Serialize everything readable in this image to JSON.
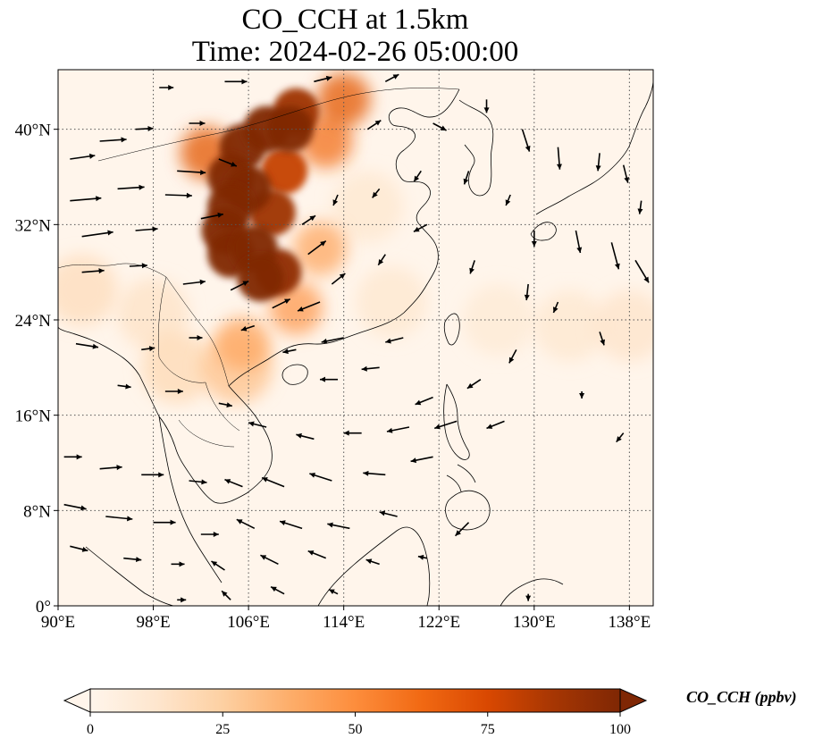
{
  "title": {
    "line1": "CO_CCH at 1.5km",
    "line2": "Time: 2024-02-26 05:00:00"
  },
  "map": {
    "extent": {
      "lon": [
        90,
        140
      ],
      "lat": [
        0,
        45
      ]
    },
    "lon_ticks": [
      {
        "value": 90,
        "label": "90°E"
      },
      {
        "value": 98,
        "label": "98°E"
      },
      {
        "value": 106,
        "label": "106°E"
      },
      {
        "value": 114,
        "label": "114°E"
      },
      {
        "value": 122,
        "label": "122°E"
      },
      {
        "value": 130,
        "label": "130°E"
      },
      {
        "value": 138,
        "label": "138°E"
      }
    ],
    "lat_ticks": [
      {
        "value": 0,
        "label": "0°"
      },
      {
        "value": 8,
        "label": "8°N"
      },
      {
        "value": 16,
        "label": "16°N"
      },
      {
        "value": 24,
        "label": "24°N"
      },
      {
        "value": 32,
        "label": "32°N"
      },
      {
        "value": 40,
        "label": "40°N"
      }
    ],
    "gridlines": true,
    "background_color": "#fff5eb",
    "coastline_color": "#000000",
    "concentration_field": [
      {
        "lon": 105.5,
        "lat": 38.5,
        "value": 100
      },
      {
        "lon": 107.5,
        "lat": 40.0,
        "value": 100
      },
      {
        "lon": 109.5,
        "lat": 40.0,
        "value": 100
      },
      {
        "lon": 110.0,
        "lat": 41.5,
        "value": 90
      },
      {
        "lon": 104.5,
        "lat": 36.0,
        "value": 100
      },
      {
        "lon": 106.0,
        "lat": 35.0,
        "value": 100
      },
      {
        "lon": 104.5,
        "lat": 33.5,
        "value": 100
      },
      {
        "lon": 104.0,
        "lat": 31.5,
        "value": 100
      },
      {
        "lon": 104.5,
        "lat": 29.5,
        "value": 100
      },
      {
        "lon": 106.5,
        "lat": 30.0,
        "value": 100
      },
      {
        "lon": 107.0,
        "lat": 27.5,
        "value": 100
      },
      {
        "lon": 108.5,
        "lat": 28.0,
        "value": 95
      },
      {
        "lon": 108.0,
        "lat": 33.0,
        "value": 90
      },
      {
        "lon": 109.0,
        "lat": 36.5,
        "value": 80
      },
      {
        "lon": 102.5,
        "lat": 38.0,
        "value": 70
      },
      {
        "lon": 112.5,
        "lat": 39.0,
        "value": 60
      },
      {
        "lon": 114.0,
        "lat": 42.5,
        "value": 70
      },
      {
        "lon": 112.0,
        "lat": 30.0,
        "value": 40
      },
      {
        "lon": 110.0,
        "lat": 25.0,
        "value": 45
      },
      {
        "lon": 105.5,
        "lat": 22.0,
        "value": 40
      },
      {
        "lon": 105.0,
        "lat": 20.0,
        "value": 30
      },
      {
        "lon": 100.0,
        "lat": 20.0,
        "value": 20
      },
      {
        "lon": 92.0,
        "lat": 26.5,
        "value": 18
      },
      {
        "lon": 98.0,
        "lat": 24.5,
        "value": 15
      },
      {
        "lon": 127.0,
        "lat": 24.0,
        "value": 10
      },
      {
        "lon": 133.0,
        "lat": 23.5,
        "value": 12
      },
      {
        "lon": 138.0,
        "lat": 23.5,
        "value": 14
      },
      {
        "lon": 118.0,
        "lat": 25.5,
        "value": 12
      },
      {
        "lon": 116.0,
        "lat": 33.5,
        "value": 12
      }
    ],
    "wind_vectors": [
      {
        "lon": 91.0,
        "lat": 37.5,
        "u": 2.8,
        "v": 0.4
      },
      {
        "lon": 93.5,
        "lat": 39.0,
        "u": 3.0,
        "v": 0.2
      },
      {
        "lon": 96.5,
        "lat": 40.0,
        "u": 2.0,
        "v": 0.1
      },
      {
        "lon": 91.0,
        "lat": 34.0,
        "u": 3.5,
        "v": 0.3
      },
      {
        "lon": 95.0,
        "lat": 35.0,
        "u": 3.0,
        "v": 0.2
      },
      {
        "lon": 99.0,
        "lat": 34.5,
        "u": 3.0,
        "v": -0.1
      },
      {
        "lon": 92.0,
        "lat": 31.0,
        "u": 3.5,
        "v": 0.5
      },
      {
        "lon": 96.5,
        "lat": 31.5,
        "u": 2.5,
        "v": 0.2
      },
      {
        "lon": 92.0,
        "lat": 28.0,
        "u": 2.5,
        "v": 0.2
      },
      {
        "lon": 96.0,
        "lat": 28.5,
        "u": 2.0,
        "v": 0.1
      },
      {
        "lon": 100.5,
        "lat": 27.0,
        "u": 2.5,
        "v": 0.3
      },
      {
        "lon": 102.0,
        "lat": 32.5,
        "u": 2.5,
        "v": 0.5
      },
      {
        "lon": 103.5,
        "lat": 37.5,
        "u": 2.0,
        "v": -0.8
      },
      {
        "lon": 100.0,
        "lat": 36.5,
        "u": 3.2,
        "v": -0.2
      },
      {
        "lon": 101.0,
        "lat": 40.5,
        "u": 1.8,
        "v": 0.0
      },
      {
        "lon": 104.0,
        "lat": 44.0,
        "u": 2.5,
        "v": 0.0
      },
      {
        "lon": 98.5,
        "lat": 43.5,
        "u": 1.6,
        "v": 0.0
      },
      {
        "lon": 111.5,
        "lat": 44.0,
        "u": 2.0,
        "v": 0.5
      },
      {
        "lon": 117.5,
        "lat": 44.0,
        "u": 1.5,
        "v": 0.8
      },
      {
        "lon": 116.0,
        "lat": 40.0,
        "u": 1.5,
        "v": 1.0
      },
      {
        "lon": 121.5,
        "lat": 40.5,
        "u": 1.5,
        "v": -0.8
      },
      {
        "lon": 126.0,
        "lat": 42.5,
        "u": 0.0,
        "v": -1.5
      },
      {
        "lon": 129.0,
        "lat": 40.0,
        "u": 0.8,
        "v": -2.5
      },
      {
        "lon": 132.0,
        "lat": 38.5,
        "u": 0.2,
        "v": -2.5
      },
      {
        "lon": 135.5,
        "lat": 38.0,
        "u": -0.2,
        "v": -2.0
      },
      {
        "lon": 137.5,
        "lat": 37.0,
        "u": 0.5,
        "v": -2.0
      },
      {
        "lon": 139.0,
        "lat": 34.0,
        "u": -0.2,
        "v": -1.5
      },
      {
        "lon": 133.5,
        "lat": 31.5,
        "u": 0.5,
        "v": -2.5
      },
      {
        "lon": 136.5,
        "lat": 30.5,
        "u": 0.8,
        "v": -3.0
      },
      {
        "lon": 138.5,
        "lat": 29.0,
        "u": 1.5,
        "v": -2.5
      },
      {
        "lon": 130.0,
        "lat": 31.5,
        "u": 0.0,
        "v": -1.8
      },
      {
        "lon": 128.0,
        "lat": 34.5,
        "u": -0.5,
        "v": -1.2
      },
      {
        "lon": 124.5,
        "lat": 36.5,
        "u": -0.5,
        "v": -1.5
      },
      {
        "lon": 120.5,
        "lat": 36.5,
        "u": -0.8,
        "v": -1.2
      },
      {
        "lon": 117.0,
        "lat": 35.0,
        "u": -0.8,
        "v": -1.0
      },
      {
        "lon": 113.5,
        "lat": 34.5,
        "u": -0.5,
        "v": -1.2
      },
      {
        "lon": 121.0,
        "lat": 32.0,
        "u": -1.5,
        "v": -0.8
      },
      {
        "lon": 117.5,
        "lat": 29.5,
        "u": -0.8,
        "v": -1.2
      },
      {
        "lon": 125.0,
        "lat": 29.0,
        "u": -0.5,
        "v": -1.5
      },
      {
        "lon": 129.5,
        "lat": 27.0,
        "u": -0.2,
        "v": -1.8
      },
      {
        "lon": 132.0,
        "lat": 25.5,
        "u": -0.5,
        "v": -1.2
      },
      {
        "lon": 135.5,
        "lat": 23.0,
        "u": 0.5,
        "v": -1.5
      },
      {
        "lon": 128.5,
        "lat": 21.5,
        "u": -0.8,
        "v": -1.5
      },
      {
        "lon": 125.5,
        "lat": 19.0,
        "u": -1.5,
        "v": -1.0
      },
      {
        "lon": 121.5,
        "lat": 17.5,
        "u": -2.0,
        "v": -0.8
      },
      {
        "lon": 117.0,
        "lat": 20.0,
        "u": -2.0,
        "v": -0.2
      },
      {
        "lon": 113.5,
        "lat": 19.0,
        "u": -2.0,
        "v": 0.0
      },
      {
        "lon": 119.0,
        "lat": 22.5,
        "u": -2.0,
        "v": -0.5
      },
      {
        "lon": 114.0,
        "lat": 22.5,
        "u": -2.5,
        "v": -0.5
      },
      {
        "lon": 110.0,
        "lat": 21.5,
        "u": -1.5,
        "v": -0.3
      },
      {
        "lon": 112.0,
        "lat": 25.5,
        "u": -2.5,
        "v": -1.0
      },
      {
        "lon": 108.0,
        "lat": 25.0,
        "u": 2.0,
        "v": 1.0
      },
      {
        "lon": 104.5,
        "lat": 26.5,
        "u": 2.0,
        "v": 1.0
      },
      {
        "lon": 113.0,
        "lat": 27.0,
        "u": 1.5,
        "v": 1.2
      },
      {
        "lon": 111.0,
        "lat": 29.5,
        "u": 2.0,
        "v": 1.5
      },
      {
        "lon": 110.5,
        "lat": 32.0,
        "u": 1.5,
        "v": 1.0
      },
      {
        "lon": 106.5,
        "lat": 23.5,
        "u": -1.5,
        "v": -0.5
      },
      {
        "lon": 101.0,
        "lat": 22.5,
        "u": 1.5,
        "v": 0.0
      },
      {
        "lon": 97.0,
        "lat": 21.5,
        "u": 1.5,
        "v": 0.2
      },
      {
        "lon": 91.5,
        "lat": 22.0,
        "u": 2.5,
        "v": -0.4
      },
      {
        "lon": 95.0,
        "lat": 18.5,
        "u": 1.5,
        "v": -0.2
      },
      {
        "lon": 99.0,
        "lat": 18.0,
        "u": 2.0,
        "v": 0.0
      },
      {
        "lon": 103.5,
        "lat": 17.0,
        "u": 1.5,
        "v": -0.3
      },
      {
        "lon": 107.5,
        "lat": 15.0,
        "u": -2.0,
        "v": 0.5
      },
      {
        "lon": 111.5,
        "lat": 14.0,
        "u": -2.0,
        "v": 0.5
      },
      {
        "lon": 115.5,
        "lat": 14.5,
        "u": -2.0,
        "v": 0.0
      },
      {
        "lon": 119.5,
        "lat": 15.0,
        "u": -2.5,
        "v": -0.5
      },
      {
        "lon": 123.5,
        "lat": 15.5,
        "u": -2.5,
        "v": -0.8
      },
      {
        "lon": 127.5,
        "lat": 15.5,
        "u": -2.0,
        "v": -0.8
      },
      {
        "lon": 90.5,
        "lat": 12.5,
        "u": 2.0,
        "v": 0.0
      },
      {
        "lon": 93.5,
        "lat": 11.5,
        "u": 2.5,
        "v": 0.2
      },
      {
        "lon": 97.0,
        "lat": 11.0,
        "u": 2.5,
        "v": 0.0
      },
      {
        "lon": 101.0,
        "lat": 10.5,
        "u": 2.0,
        "v": -0.2
      },
      {
        "lon": 105.5,
        "lat": 10.0,
        "u": -2.0,
        "v": 0.8
      },
      {
        "lon": 109.0,
        "lat": 10.0,
        "u": -2.5,
        "v": 1.0
      },
      {
        "lon": 113.0,
        "lat": 10.5,
        "u": -2.5,
        "v": 0.8
      },
      {
        "lon": 117.5,
        "lat": 11.0,
        "u": -2.5,
        "v": 0.2
      },
      {
        "lon": 121.5,
        "lat": 12.5,
        "u": -2.5,
        "v": -0.5
      },
      {
        "lon": 90.5,
        "lat": 8.5,
        "u": 2.5,
        "v": -0.5
      },
      {
        "lon": 94.0,
        "lat": 7.5,
        "u": 3.0,
        "v": -0.3
      },
      {
        "lon": 98.0,
        "lat": 7.0,
        "u": 2.5,
        "v": 0.0
      },
      {
        "lon": 102.0,
        "lat": 6.0,
        "u": 2.0,
        "v": 0.0
      },
      {
        "lon": 106.5,
        "lat": 6.5,
        "u": -2.0,
        "v": 1.0
      },
      {
        "lon": 110.5,
        "lat": 6.5,
        "u": -2.5,
        "v": 0.8
      },
      {
        "lon": 114.5,
        "lat": 6.5,
        "u": -2.5,
        "v": 0.5
      },
      {
        "lon": 118.5,
        "lat": 7.5,
        "u": -2.0,
        "v": 0.5
      },
      {
        "lon": 124.5,
        "lat": 7.0,
        "u": -1.5,
        "v": -1.5
      },
      {
        "lon": 91.0,
        "lat": 5.0,
        "u": 2.0,
        "v": -0.5
      },
      {
        "lon": 95.5,
        "lat": 4.0,
        "u": 2.0,
        "v": -0.2
      },
      {
        "lon": 99.5,
        "lat": 3.5,
        "u": 1.5,
        "v": 0.0
      },
      {
        "lon": 104.0,
        "lat": 3.0,
        "u": -1.5,
        "v": 1.0
      },
      {
        "lon": 108.5,
        "lat": 3.5,
        "u": -2.0,
        "v": 1.0
      },
      {
        "lon": 112.5,
        "lat": 4.0,
        "u": -2.0,
        "v": 0.8
      },
      {
        "lon": 117.0,
        "lat": 3.5,
        "u": -1.5,
        "v": 0.5
      },
      {
        "lon": 121.0,
        "lat": 4.0,
        "u": -1.0,
        "v": 0.2
      },
      {
        "lon": 100.0,
        "lat": 0.5,
        "u": 1.0,
        "v": 0.0
      },
      {
        "lon": 104.5,
        "lat": 0.5,
        "u": -1.0,
        "v": 1.0
      },
      {
        "lon": 109.0,
        "lat": 1.0,
        "u": -1.5,
        "v": 0.8
      },
      {
        "lon": 113.5,
        "lat": 1.0,
        "u": -1.0,
        "v": 0.5
      },
      {
        "lon": 129.5,
        "lat": 1.0,
        "u": 0.0,
        "v": -0.8
      },
      {
        "lon": 137.5,
        "lat": 14.5,
        "u": -0.8,
        "v": -1.0
      },
      {
        "lon": 134.0,
        "lat": 18.0,
        "u": 0.0,
        "v": -0.8
      }
    ]
  },
  "colorbar": {
    "title": "CO_CCH (ppbv)",
    "min": 0,
    "max": 100,
    "extend": "both",
    "ticks": [
      {
        "value": 0,
        "label": "0"
      },
      {
        "value": 25,
        "label": "25"
      },
      {
        "value": 50,
        "label": "50"
      },
      {
        "value": 75,
        "label": "75"
      },
      {
        "value": 100,
        "label": "100"
      }
    ],
    "colors": [
      "#fff5eb",
      "#fee6ce",
      "#fdd0a2",
      "#fdae6b",
      "#fd8d3c",
      "#f16913",
      "#d94801",
      "#a63603",
      "#7f2704"
    ]
  }
}
